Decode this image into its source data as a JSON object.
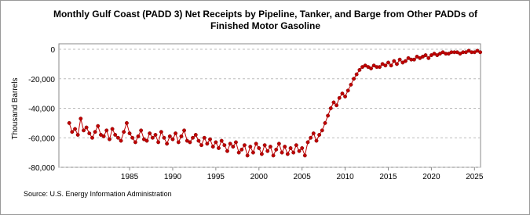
{
  "chart_data": {
    "type": "line",
    "title": "Monthly Gulf Coast (PADD 3) Net Receipts by Pipeline, Tanker, and Barge from Other PADDs of",
    "subtitle": "Finished Motor Gasoline",
    "y_label": "Thousand Barrels",
    "source": "Source: U.S. Energy Information Administration",
    "xlim": [
      1976.8,
      2025.7
    ],
    "xticks": [
      1985,
      1990,
      1995,
      2000,
      2005,
      2010,
      2015,
      2020,
      2025
    ],
    "ylim": [
      -80000,
      0
    ],
    "yticks": [
      {
        "value": -80000,
        "label": "-80,000"
      },
      {
        "value": -60000,
        "label": "-60,000"
      },
      {
        "value": -40000,
        "label": "-40,000"
      },
      {
        "value": -20000,
        "label": "-20,000"
      },
      0
    ],
    "grid": true,
    "x": [
      1978,
      1978.33,
      1978.67,
      1979,
      1979.33,
      1979.67,
      1980,
      1980.33,
      1980.67,
      1981,
      1981.33,
      1981.67,
      1982,
      1982.33,
      1982.67,
      1983,
      1983.33,
      1983.67,
      1984,
      1984.33,
      1984.67,
      1985,
      1985.33,
      1985.67,
      1986,
      1986.33,
      1986.67,
      1987,
      1987.33,
      1987.67,
      1988,
      1988.33,
      1988.67,
      1989,
      1989.33,
      1989.67,
      1990,
      1990.33,
      1990.67,
      1991,
      1991.33,
      1991.67,
      1992,
      1992.33,
      1992.67,
      1993,
      1993.33,
      1993.67,
      1994,
      1994.33,
      1994.67,
      1995,
      1995.33,
      1995.67,
      1996,
      1996.33,
      1996.67,
      1997,
      1997.33,
      1997.67,
      1998,
      1998.33,
      1998.67,
      1999,
      1999.33,
      1999.67,
      2000,
      2000.33,
      2000.67,
      2001,
      2001.33,
      2001.67,
      2002,
      2002.33,
      2002.67,
      2003,
      2003.33,
      2003.67,
      2004,
      2004.33,
      2004.67,
      2005,
      2005.33,
      2005.67,
      2006,
      2006.33,
      2006.67,
      2007,
      2007.33,
      2007.67,
      2008,
      2008.33,
      2008.67,
      2009,
      2009.33,
      2009.67,
      2010,
      2010.33,
      2010.67,
      2011,
      2011.33,
      2011.67,
      2012,
      2012.33,
      2012.67,
      2013,
      2013.33,
      2013.67,
      2014,
      2014.33,
      2014.67,
      2015,
      2015.33,
      2015.67,
      2016,
      2016.33,
      2016.67,
      2017,
      2017.33,
      2017.67,
      2018,
      2018.33,
      2018.67,
      2019,
      2019.33,
      2019.67,
      2020,
      2020.33,
      2020.67,
      2021,
      2021.33,
      2021.67,
      2022,
      2022.33,
      2022.67,
      2023,
      2023.33,
      2023.67,
      2024,
      2024.33,
      2024.67,
      2025,
      2025.33,
      2025.67
    ],
    "series": [
      {
        "color": "#c00000",
        "values": [
          -50000,
          -56000,
          -54000,
          -58000,
          -47000,
          -55000,
          -53000,
          -57000,
          -60000,
          -56000,
          -52000,
          -58000,
          -59000,
          -55000,
          -61000,
          -54000,
          -58000,
          -60000,
          -62000,
          -56000,
          -50000,
          -57000,
          -60000,
          -63000,
          -59000,
          -55000,
          -61000,
          -62000,
          -57000,
          -60000,
          -58000,
          -63000,
          -56000,
          -60000,
          -64000,
          -59000,
          -61000,
          -57000,
          -63000,
          -59000,
          -55000,
          -62000,
          -63000,
          -60000,
          -58000,
          -62000,
          -65000,
          -60000,
          -64000,
          -61000,
          -66000,
          -63000,
          -67000,
          -62000,
          -65000,
          -69000,
          -64000,
          -66000,
          -63000,
          -70000,
          -68000,
          -65000,
          -72000,
          -66000,
          -70000,
          -64000,
          -67000,
          -71000,
          -65000,
          -69000,
          -66000,
          -72000,
          -68000,
          -64000,
          -70000,
          -66000,
          -71000,
          -67000,
          -70000,
          -65000,
          -69000,
          -67000,
          -72000,
          -63000,
          -60000,
          -57000,
          -62000,
          -58000,
          -55000,
          -50000,
          -45000,
          -40000,
          -36000,
          -38000,
          -33000,
          -30000,
          -32000,
          -28000,
          -24000,
          -20000,
          -17000,
          -14000,
          -12000,
          -11000,
          -12000,
          -13000,
          -11000,
          -12000,
          -12000,
          -10000,
          -11000,
          -9000,
          -11000,
          -8000,
          -10000,
          -7000,
          -9000,
          -8000,
          -6000,
          -7000,
          -7000,
          -5000,
          -6000,
          -5000,
          -4000,
          -6000,
          -4000,
          -3000,
          -4000,
          -3000,
          -2000,
          -3000,
          -3000,
          -2000,
          -2000,
          -2000,
          -3000,
          -2000,
          -2000,
          -1000,
          -2000,
          -2000,
          -1000,
          -2000
        ]
      }
    ]
  }
}
